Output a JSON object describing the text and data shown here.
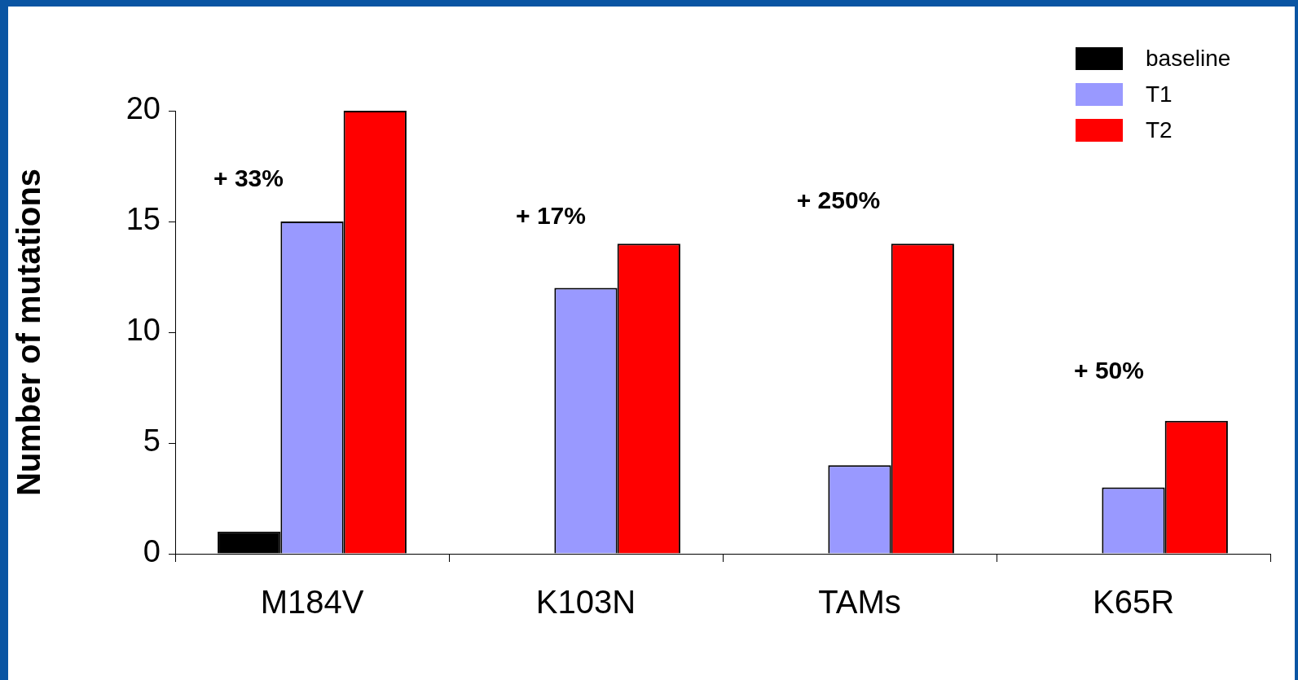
{
  "chart_data": {
    "type": "bar",
    "ylabel": "Number of mutations",
    "categories": [
      "M184V",
      "K103N",
      "TAMs",
      "K65R"
    ],
    "series": [
      {
        "name": "baseline",
        "color": "#000000",
        "values": [
          1,
          null,
          null,
          null
        ]
      },
      {
        "name": "T1",
        "color": "#9999ff",
        "values": [
          15,
          12,
          4,
          3
        ]
      },
      {
        "name": "T2",
        "color": "#ff0000",
        "values": [
          20,
          14,
          14,
          6
        ]
      }
    ],
    "ylim": [
      0,
      20
    ],
    "yticks": [
      0,
      5,
      10,
      15,
      20
    ],
    "grid": false,
    "legend": "top right",
    "annotations": [
      "+ 33%",
      "+ 17%",
      "+ 250%",
      "+ 50%"
    ]
  }
}
